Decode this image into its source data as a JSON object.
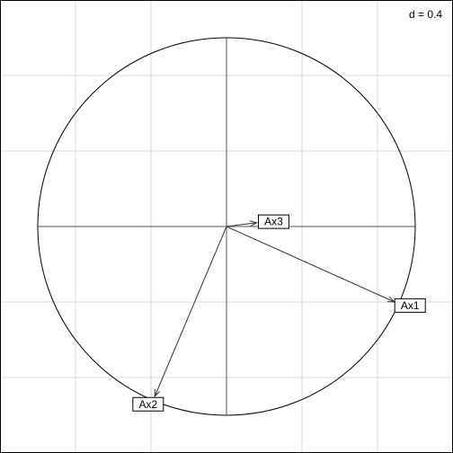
{
  "chart_data": {
    "type": "scatter",
    "title": "",
    "scale_label": "d = 0.4",
    "grid": true,
    "xlim": [
      -1,
      1
    ],
    "ylim": [
      -1,
      1
    ],
    "grid_step": 0.4,
    "circle_radius": 1,
    "colors": {
      "frame": "#000000",
      "grid": "#d9d9d9",
      "circle": "#000000",
      "axes": "#555555",
      "arrow": "#333333",
      "label_box": "#000000",
      "background": "#ffffff"
    },
    "arrows": [
      {
        "label": "Ax1",
        "x": 0.89,
        "y": -0.4
      },
      {
        "label": "Ax2",
        "x": -0.38,
        "y": -0.9
      },
      {
        "label": "Ax3",
        "x": 0.16,
        "y": 0.02
      }
    ]
  }
}
